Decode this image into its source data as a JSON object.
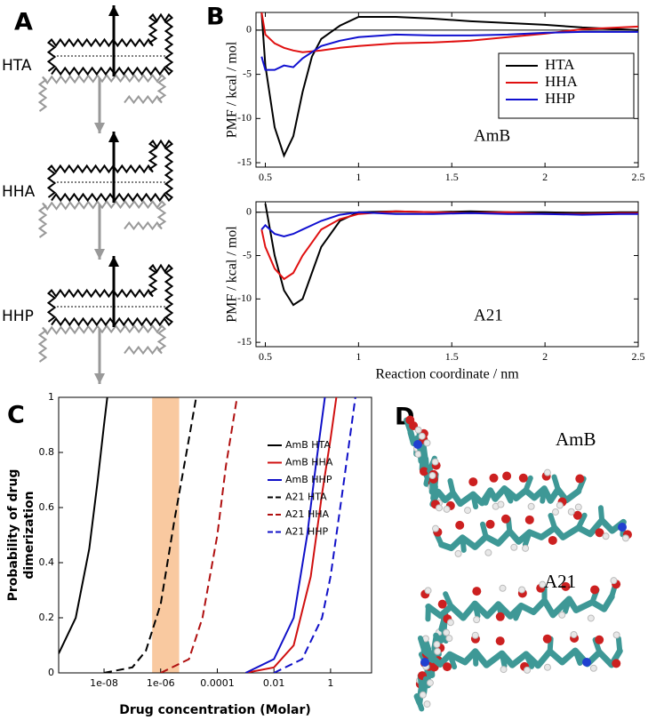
{
  "panel_labels": [
    "A",
    "B",
    "C",
    "D"
  ],
  "diagram": {
    "labels": [
      "HTA",
      "HHA",
      "HHP"
    ]
  },
  "molecules": {
    "labels": [
      "AmB",
      "A21"
    ]
  },
  "chart_data": [
    {
      "type": "line",
      "annotation": "AmB",
      "y_label": "PMF / kcal / mol",
      "x": [
        0.48,
        0.5,
        0.55,
        0.6,
        0.65,
        0.7,
        0.75,
        0.8,
        0.9,
        1,
        1.2,
        1.4,
        1.6,
        1.8,
        2,
        2.2,
        2.4,
        2.5
      ],
      "xlim": [
        0.45,
        2.5
      ],
      "ylim": [
        -15.5,
        2
      ],
      "xticks": [
        0.5,
        1,
        1.5,
        2,
        2.5
      ],
      "yticks": [
        0,
        -5,
        -10,
        -15
      ],
      "zero_line": true,
      "legend": "upper right",
      "series": [
        {
          "name": "HTA",
          "color": "#000000",
          "values": [
            2,
            -4,
            -11,
            -14.2,
            -12,
            -7,
            -3,
            -1,
            0.5,
            1.5,
            1.5,
            1.3,
            1,
            0.8,
            0.6,
            0.3,
            0.1,
            0
          ]
        },
        {
          "name": "HHA",
          "color": "#e01010",
          "values": [
            2,
            -0.5,
            -1.5,
            -2,
            -2.3,
            -2.5,
            -2.4,
            -2.3,
            -2,
            -1.8,
            -1.5,
            -1.4,
            -1.2,
            -0.8,
            -0.4,
            0.1,
            0.3,
            0.4
          ]
        },
        {
          "name": "HHP",
          "color": "#1010d0",
          "values": [
            -3,
            -4.5,
            -4.5,
            -4,
            -4.2,
            -3.2,
            -2.5,
            -1.8,
            -1.2,
            -0.8,
            -0.5,
            -0.6,
            -0.6,
            -0.5,
            -0.3,
            -0.2,
            -0.2,
            -0.2
          ]
        }
      ]
    },
    {
      "type": "line",
      "annotation": "A21",
      "y_label": "PMF / kcal / mol",
      "x_label": "Reaction coordinate / nm",
      "x": [
        0.48,
        0.5,
        0.55,
        0.6,
        0.65,
        0.7,
        0.75,
        0.8,
        0.9,
        1,
        1.2,
        1.4,
        1.6,
        1.8,
        2,
        2.2,
        2.4,
        2.5
      ],
      "xlim": [
        0.45,
        2.5
      ],
      "ylim": [
        -15.5,
        1.2
      ],
      "xticks": [
        0.5,
        1,
        1.5,
        2,
        2.5
      ],
      "yticks": [
        0,
        -5,
        -10,
        -15
      ],
      "zero_line": true,
      "series": [
        {
          "color": "#000000",
          "values": [
            null,
            1,
            -5,
            -9,
            -10.7,
            -10,
            -7,
            -4,
            -1,
            0,
            0.1,
            0,
            0.1,
            0,
            0,
            -0.1,
            0,
            0
          ]
        },
        {
          "color": "#e01010",
          "values": [
            -2,
            -4,
            -6.5,
            -7.7,
            -7,
            -5,
            -3.5,
            -2,
            -0.8,
            -0.2,
            0.1,
            0,
            -0.1,
            0,
            -0.2,
            -0.2,
            -0.1,
            -0.1
          ]
        },
        {
          "color": "#1010d0",
          "values": [
            -2,
            -1.5,
            -2.5,
            -2.8,
            -2.5,
            -2,
            -1.5,
            -1,
            -0.3,
            0,
            -0.2,
            -0.2,
            -0.1,
            -0.2,
            -0.2,
            -0.3,
            -0.2,
            -0.2
          ]
        }
      ]
    },
    {
      "type": "line",
      "x_label": "Drug concentration (Molar)",
      "y_label": [
        "Probability of drug",
        "dimerization"
      ],
      "xscale": "log",
      "xlim": [
        2.5e-10,
        28
      ],
      "ylim": [
        0,
        1
      ],
      "xticks": [
        {
          "value": 1e-08,
          "label": "1e-08"
        },
        {
          "value": 1e-06,
          "label": "1e-06"
        },
        0.0001,
        0.01,
        1
      ],
      "yticks": [
        0,
        0.2,
        0.4,
        0.6,
        0.8,
        1
      ],
      "legend": "upper right",
      "highlight": {
        "range": [
          5e-07,
          4.5e-06
        ],
        "color": "#f9c9a0"
      },
      "series": [
        {
          "name": "AmB HTA",
          "color": "#000000",
          "dash": false,
          "x": [
            2.5e-10,
            1e-09,
            3e-09,
            6e-09,
            1e-08,
            1.3e-08
          ],
          "values": [
            0.07,
            0.2,
            0.45,
            0.7,
            0.9,
            1
          ]
        },
        {
          "name": "AmB HHA",
          "color": "#d01010",
          "dash": false,
          "x": [
            0.001,
            0.01,
            0.05,
            0.2,
            0.5,
            1,
            1.6
          ],
          "values": [
            0,
            0.02,
            0.1,
            0.35,
            0.65,
            0.85,
            1
          ]
        },
        {
          "name": "AmB HHP",
          "color": "#1010c8",
          "dash": false,
          "x": [
            0.001,
            0.01,
            0.05,
            0.15,
            0.3,
            0.63
          ],
          "values": [
            0,
            0.05,
            0.2,
            0.5,
            0.75,
            1
          ]
        },
        {
          "name": "A21 HTA",
          "color": "#000000",
          "dash": true,
          "x": [
            1e-08,
            1e-07,
            3e-07,
            1e-06,
            3e-06,
            1e-05,
            1.8e-05
          ],
          "values": [
            0,
            0.02,
            0.08,
            0.25,
            0.55,
            0.85,
            1
          ]
        },
        {
          "name": "A21 HHA",
          "color": "#b01010",
          "dash": true,
          "x": [
            1e-06,
            1e-05,
            3e-05,
            0.0001,
            0.0002,
            0.0005
          ],
          "values": [
            0,
            0.05,
            0.2,
            0.5,
            0.75,
            1
          ]
        },
        {
          "name": "A21 HHP",
          "color": "#1010c8",
          "dash": true,
          "x": [
            0.01,
            0.1,
            0.5,
            1,
            3,
            7.5
          ],
          "values": [
            0,
            0.05,
            0.2,
            0.35,
            0.7,
            1
          ]
        }
      ]
    }
  ]
}
